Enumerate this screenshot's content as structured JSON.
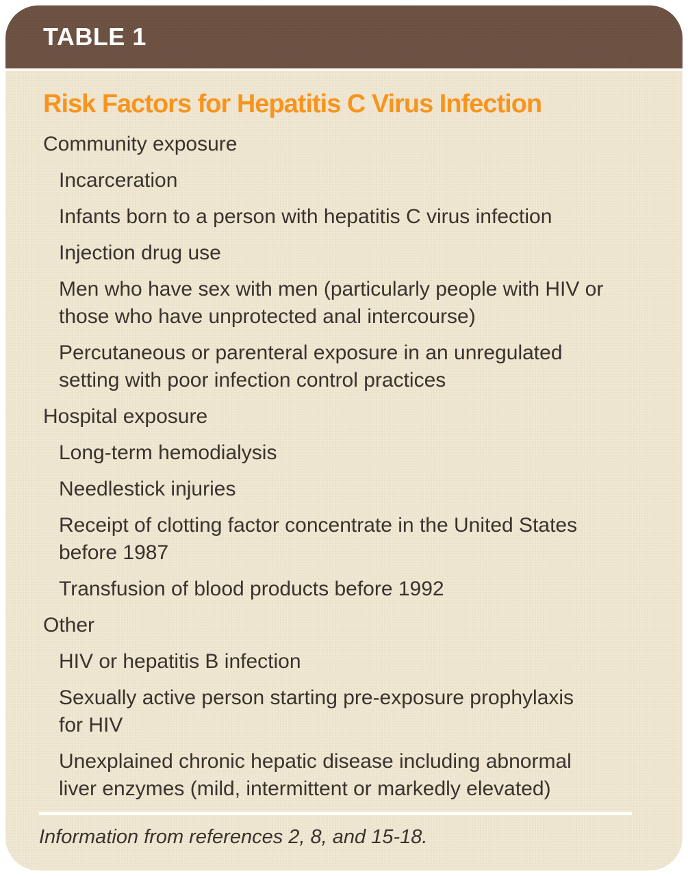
{
  "table": {
    "label": "TABLE 1",
    "title": "Risk Factors for Hepatitis C Virus Infection",
    "sections": [
      {
        "heading": "Community exposure",
        "items": [
          "Incarceration",
          "Infants born to a person with hepatitis C virus infection",
          "Injection drug use",
          "Men who have sex with men (particularly people with HIV or\nthose who have unprotected anal intercourse)",
          "Percutaneous or parenteral exposure in an unregulated\nsetting with poor infection control practices"
        ]
      },
      {
        "heading": "Hospital exposure",
        "items": [
          "Long-term hemodialysis",
          "Needlestick injuries",
          "Receipt of clotting factor concentrate in the United States\nbefore 1987",
          "Transfusion of blood products before 1992"
        ]
      },
      {
        "heading": "Other",
        "items": [
          "HIV or hepatitis B infection",
          "Sexually active person starting pre-exposure prophylaxis\nfor HIV",
          "Unexplained chronic hepatic disease including abnormal\nliver enzymes (mild, intermittent or markedly elevated)"
        ]
      }
    ],
    "footnote": "Information from references 2, 8, and 15-18."
  },
  "colors": {
    "header_bg": "#6e5344",
    "body_bg": "#f0e7d2",
    "title": "#f7941e",
    "text": "#38332c"
  }
}
